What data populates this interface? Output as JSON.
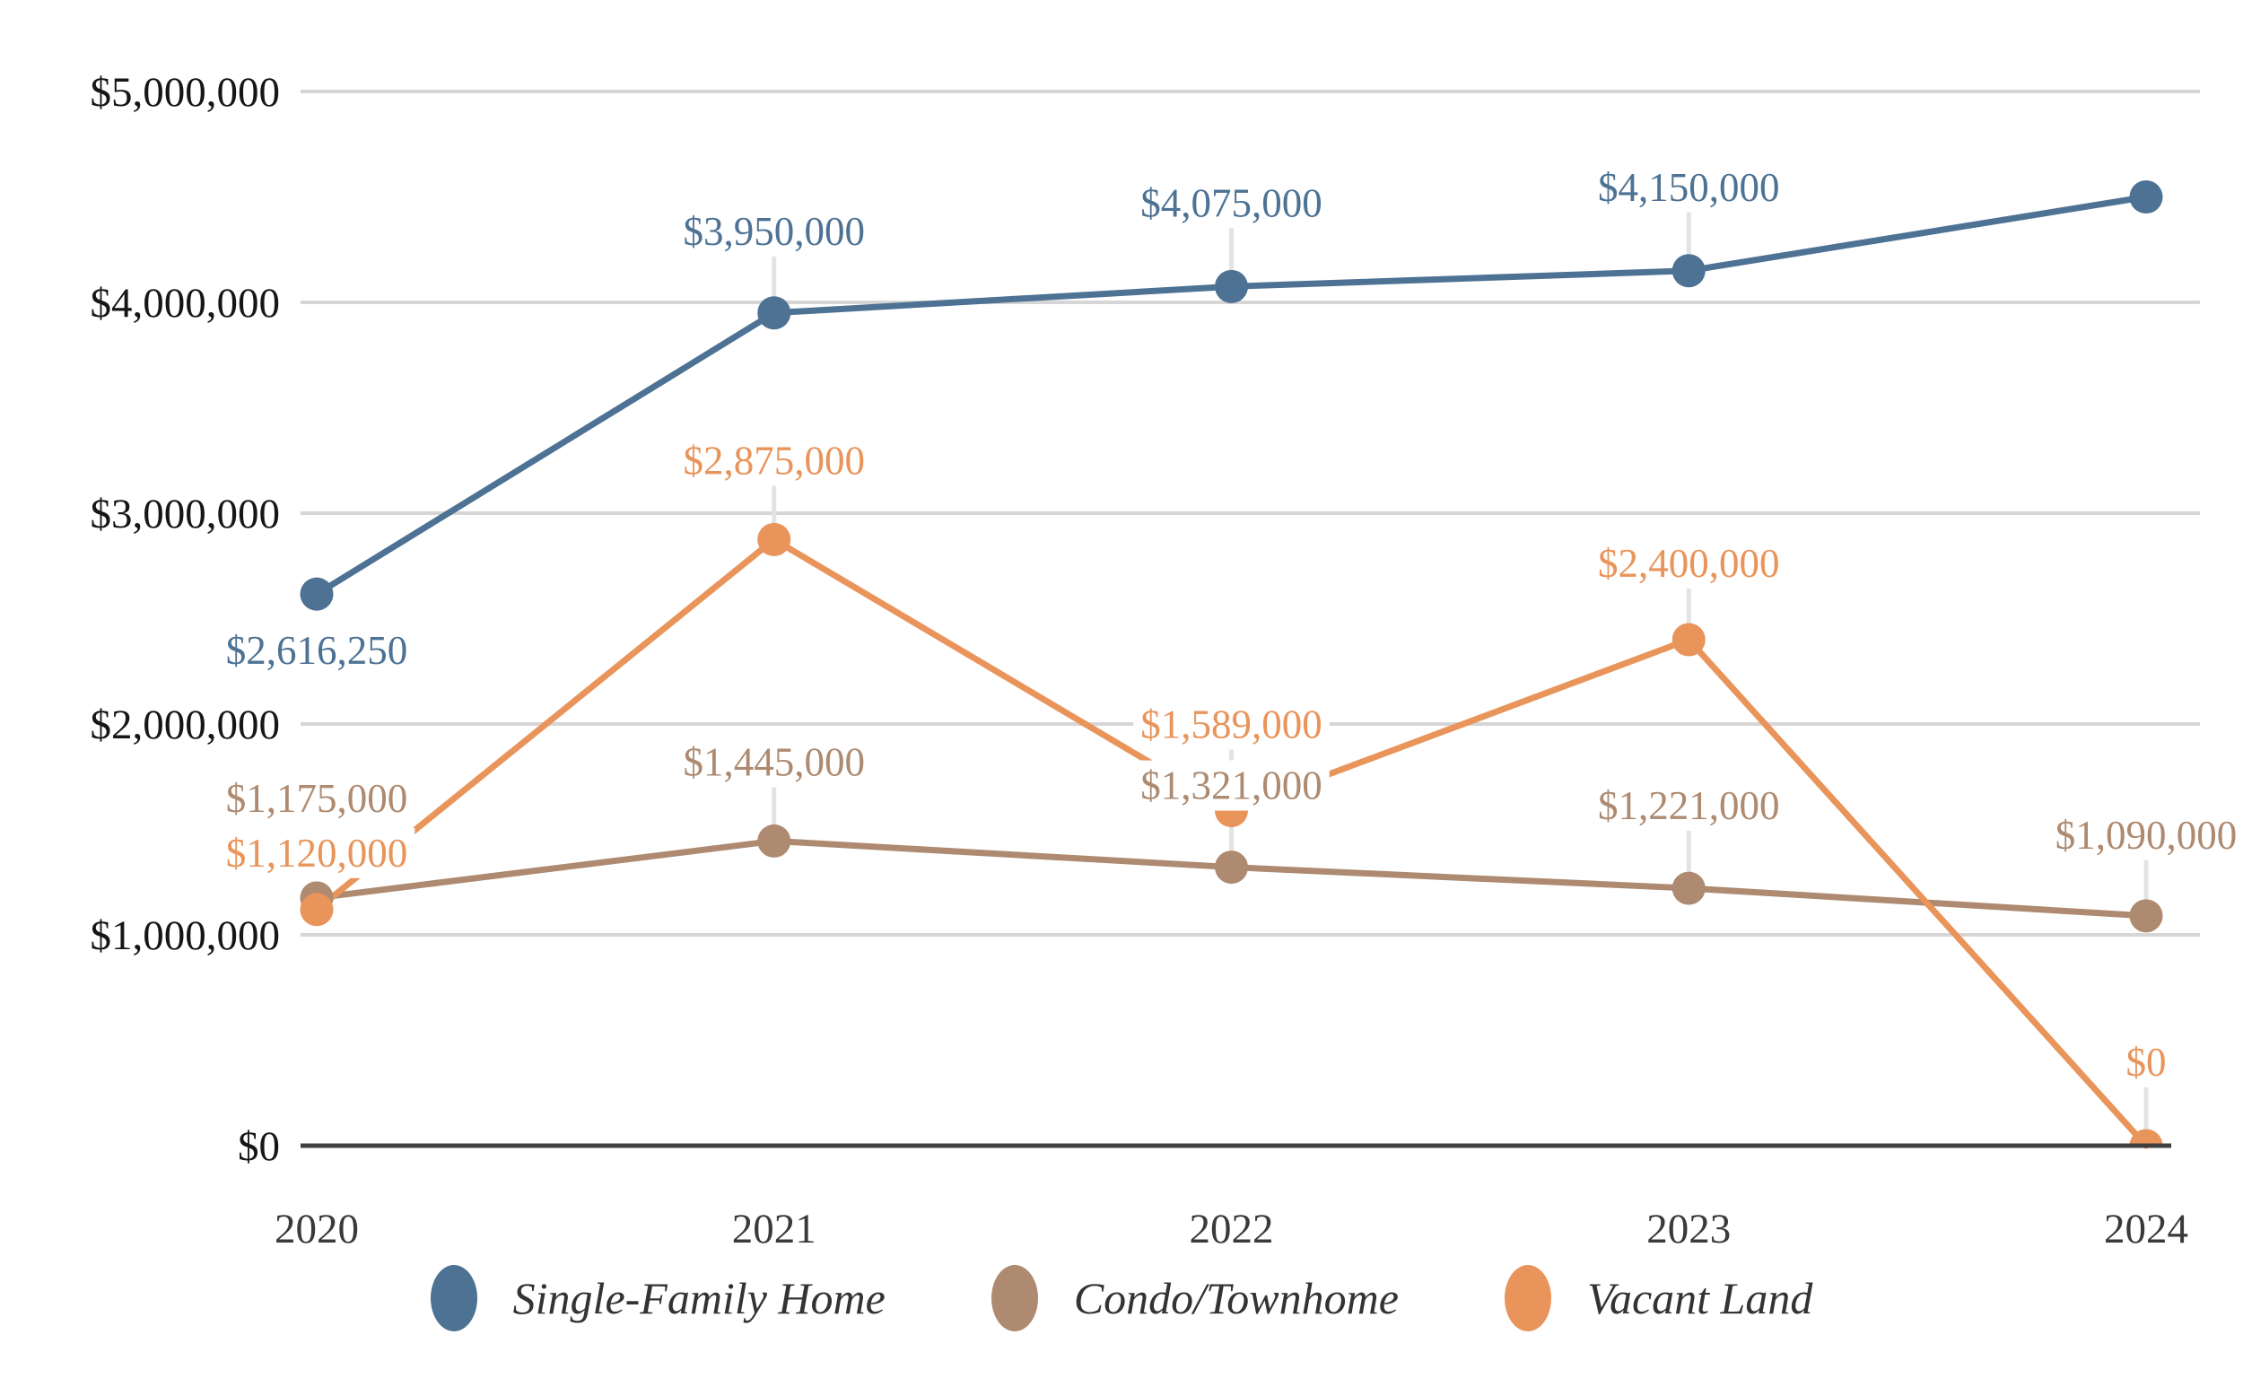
{
  "chart_data": {
    "type": "line",
    "x_categories": [
      "2020",
      "2021",
      "2022",
      "2023",
      "2024"
    ],
    "series": [
      {
        "name": "Single-Family Home",
        "color": "#4d7294",
        "values": [
          2616250,
          3950000,
          4075000,
          4150000,
          4500000
        ],
        "point_labels": [
          "$2,616,250",
          "$3,950,000",
          "$4,075,000",
          "$4,150,000",
          ""
        ],
        "label_placement": [
          {
            "dy": 62,
            "leader": false
          },
          {
            "dy": -92,
            "leader": true
          },
          {
            "dy": -94,
            "leader": true
          },
          {
            "dy": -94,
            "leader": true
          },
          {
            "dy": 0,
            "leader": false
          }
        ]
      },
      {
        "name": "Condo/Townhome",
        "color": "#ad8a70",
        "values": [
          1175000,
          1445000,
          1321000,
          1221000,
          1090000
        ],
        "point_labels": [
          "$1,175,000",
          "$1,445,000",
          "$1,321,000",
          "$1,221,000",
          "$1,090,000"
        ],
        "label_placement": [
          {
            "dy": -112,
            "leader": false
          },
          {
            "dy": -89,
            "leader": true
          },
          {
            "dy": -92,
            "leader": true
          },
          {
            "dy": -93,
            "leader": true
          },
          {
            "dy": -91,
            "leader": true
          }
        ]
      },
      {
        "name": "Vacant Land",
        "color": "#e9945a",
        "values": [
          1120000,
          2875000,
          1589000,
          2400000,
          0
        ],
        "point_labels": [
          "$1,120,000",
          "$2,875,000",
          "$1,589,000",
          "$2,400,000",
          "$0"
        ],
        "label_placement": [
          {
            "dy": -64,
            "leader": false
          },
          {
            "dy": -89,
            "leader": true
          },
          {
            "dy": -97,
            "leader": true
          },
          {
            "dy": -86,
            "leader": true
          },
          {
            "dy": -94,
            "leader": true
          }
        ]
      }
    ],
    "y_axis": {
      "range": [
        0,
        5000000
      ],
      "ticks": [
        {
          "value": 0,
          "label": "$0"
        },
        {
          "value": 1000000,
          "label": "$1,000,000"
        },
        {
          "value": 2000000,
          "label": "$2,000,000"
        },
        {
          "value": 3000000,
          "label": "$3,000,000"
        },
        {
          "value": 4000000,
          "label": "$4,000,000"
        },
        {
          "value": 5000000,
          "label": "$5,000,000"
        }
      ]
    },
    "grid": true,
    "legend_position": "bottom-center",
    "colors": {
      "gridline": "#d6d6d6",
      "axis_line": "#3f3f3f",
      "leader_line": "#e3e3e3",
      "y_tick_text": "#161616",
      "x_tick_text": "#3a3a3a"
    }
  }
}
